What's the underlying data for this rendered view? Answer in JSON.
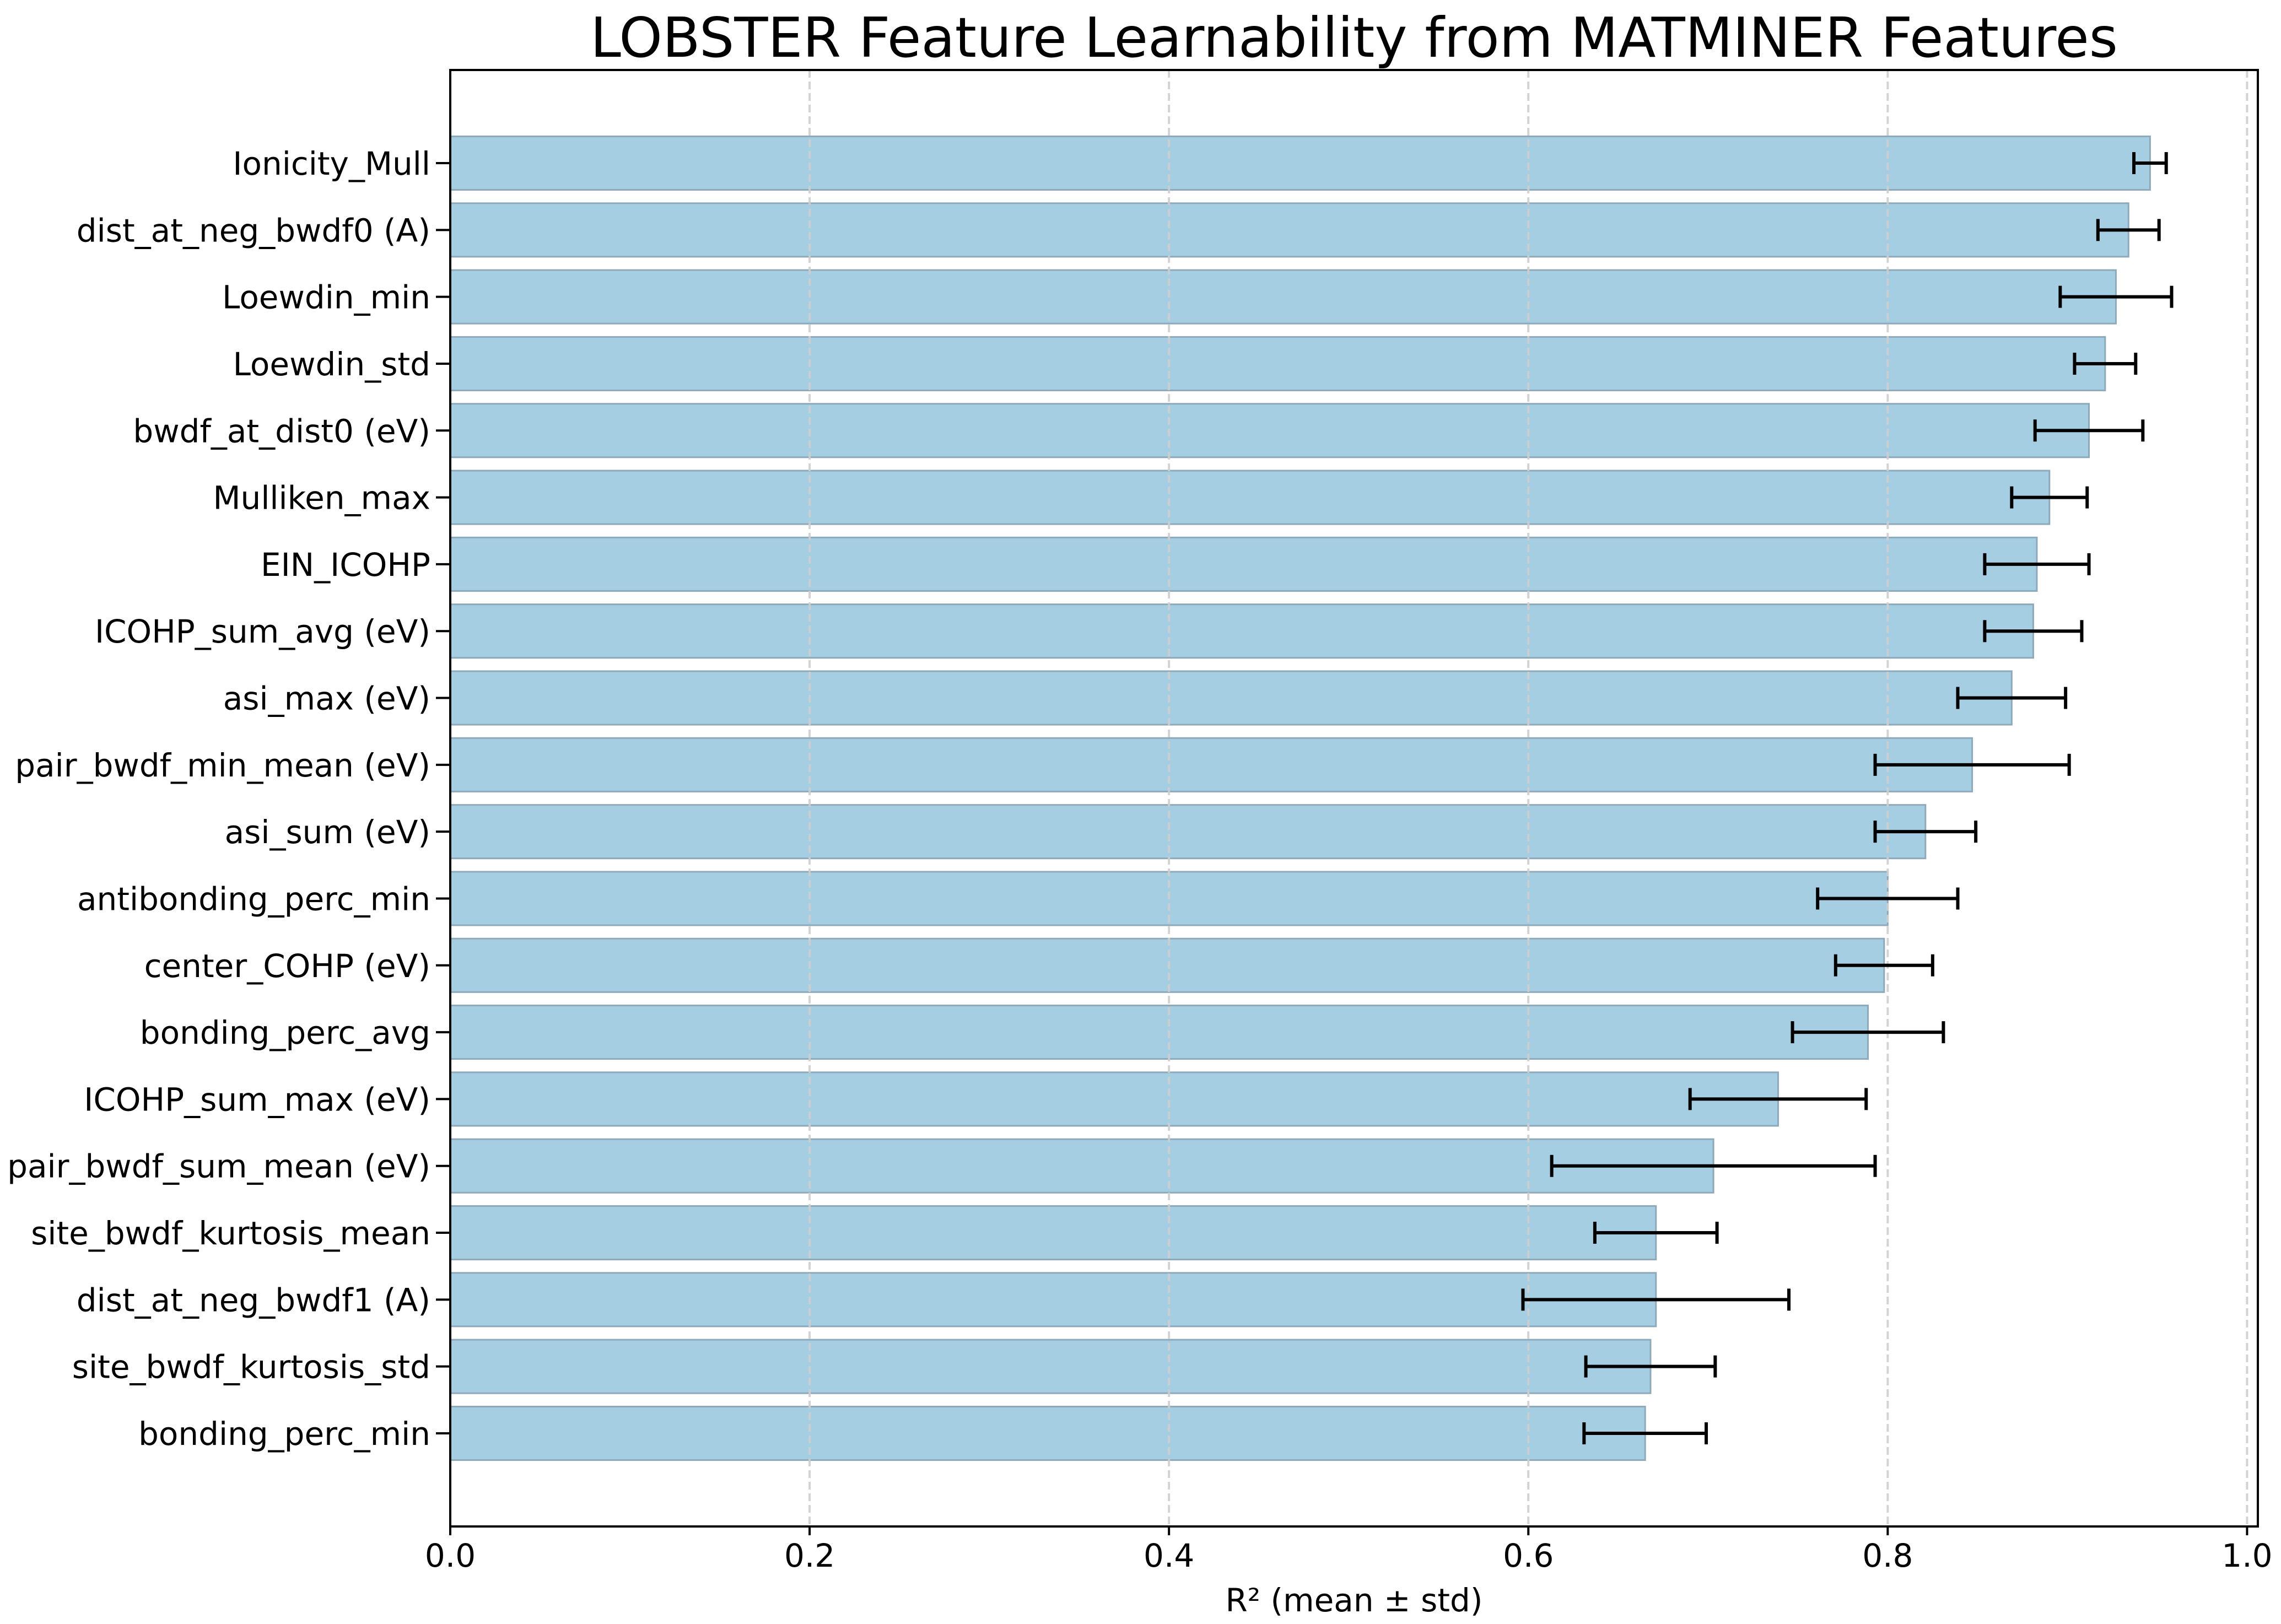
{
  "chart_data": {
    "type": "bar",
    "orientation": "horizontal",
    "title": "LOBSTER Feature Learnability from MATMINER Features",
    "xlabel": "R² (mean ± std)",
    "ylabel": "",
    "xlim": [
      0,
      1.006
    ],
    "xticks": [
      0.0,
      0.2,
      0.4,
      0.6,
      0.8,
      1.0
    ],
    "xtick_labels": [
      "0.0",
      "0.2",
      "0.4",
      "0.6",
      "0.8",
      "1.0"
    ],
    "grid": {
      "axis": "x",
      "style": "dashed",
      "color": "#cfcfcf"
    },
    "legend": null,
    "bar_color": "#a6cee3",
    "bar_edge_color": "#8ea9ba",
    "errorbar_color": "#000000",
    "categories": [
      "Ionicity_Mull",
      "dist_at_neg_bwdf0 (A)",
      "Loewdin_min",
      "Loewdin_std",
      "bwdf_at_dist0 (eV)",
      "Mulliken_max",
      "EIN_ICOHP",
      "ICOHP_sum_avg (eV)",
      "asi_max (eV)",
      "pair_bwdf_min_mean (eV)",
      "asi_sum (eV)",
      "antibonding_perc_min",
      "center_COHP (eV)",
      "bonding_perc_avg",
      "ICOHP_sum_max (eV)",
      "pair_bwdf_sum_mean (eV)",
      "site_bwdf_kurtosis_mean",
      "dist_at_neg_bwdf1 (A)",
      "site_bwdf_kurtosis_std",
      "bonding_perc_min"
    ],
    "series": [
      {
        "name": "R2 mean",
        "values": [
          0.946,
          0.934,
          0.927,
          0.921,
          0.912,
          0.89,
          0.883,
          0.881,
          0.869,
          0.847,
          0.821,
          0.8,
          0.798,
          0.789,
          0.739,
          0.703,
          0.671,
          0.671,
          0.668,
          0.665
        ]
      },
      {
        "name": "R2 std",
        "values": [
          0.009,
          0.017,
          0.031,
          0.017,
          0.03,
          0.021,
          0.029,
          0.027,
          0.03,
          0.054,
          0.028,
          0.039,
          0.027,
          0.042,
          0.049,
          0.09,
          0.034,
          0.074,
          0.036,
          0.034
        ]
      }
    ]
  }
}
